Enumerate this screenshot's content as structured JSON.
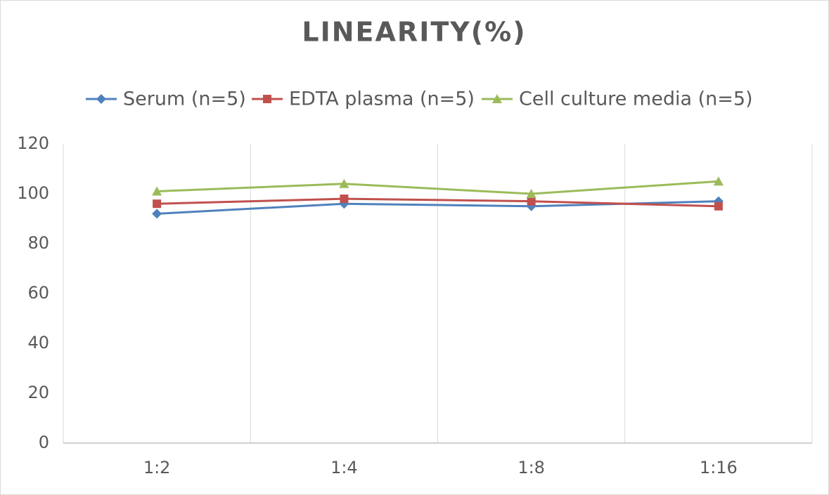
{
  "chart_data": {
    "type": "line",
    "title": "LINEARITY(%)",
    "categories": [
      "1:2",
      "1:4",
      "1:8",
      "1:16"
    ],
    "series": [
      {
        "name": "Serum (n=5)",
        "color": "#4f81bd",
        "marker": "diamond",
        "values": [
          92,
          96,
          95,
          97
        ]
      },
      {
        "name": "EDTA plasma (n=5)",
        "color": "#c0504d",
        "marker": "square",
        "values": [
          96,
          98,
          97,
          95
        ]
      },
      {
        "name": "Cell culture media (n=5)",
        "color": "#9bbb59",
        "marker": "triangle",
        "values": [
          101,
          104,
          100,
          105
        ]
      }
    ],
    "ylim": [
      0,
      120
    ],
    "yticks": [
      0,
      20,
      40,
      60,
      80,
      100,
      120
    ],
    "grid": true,
    "legend": "top"
  }
}
